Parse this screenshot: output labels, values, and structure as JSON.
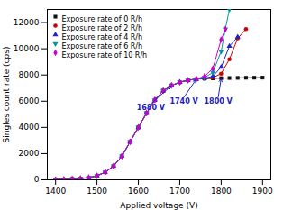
{
  "chart_data": {
    "type": "line",
    "xlabel": "Applied voltage (V)",
    "ylabel": "Singles count rate (cps)",
    "xlim": [
      1380,
      1920
    ],
    "ylim": [
      0,
      13000
    ],
    "xticks": [
      1400,
      1500,
      1600,
      1700,
      1800,
      1900
    ],
    "yticks": [
      0,
      2000,
      4000,
      6000,
      8000,
      10000,
      12000
    ],
    "grid": false,
    "legend": "upper left",
    "series": [
      {
        "name": "Exposure rate of 0 R/h",
        "color": "#111111",
        "marker": "square",
        "x": [
          1400,
          1420,
          1440,
          1460,
          1480,
          1500,
          1520,
          1540,
          1560,
          1580,
          1600,
          1620,
          1640,
          1660,
          1680,
          1700,
          1720,
          1740,
          1760,
          1780,
          1800,
          1820,
          1840,
          1860,
          1880,
          1900
        ],
        "values": [
          20,
          35,
          60,
          100,
          170,
          310,
          580,
          1050,
          1800,
          2900,
          4000,
          5100,
          6100,
          6800,
          7200,
          7450,
          7600,
          7680,
          7720,
          7740,
          7760,
          7770,
          7780,
          7790,
          7795,
          7800
        ]
      },
      {
        "name": "Exposure rate of 2 R/h",
        "color": "#cc0000",
        "marker": "circle",
        "x": [
          1400,
          1420,
          1440,
          1460,
          1480,
          1500,
          1520,
          1540,
          1560,
          1580,
          1600,
          1620,
          1640,
          1660,
          1680,
          1700,
          1720,
          1740,
          1760,
          1780,
          1800,
          1820,
          1840,
          1860
        ],
        "values": [
          20,
          35,
          60,
          100,
          170,
          310,
          580,
          1050,
          1800,
          2900,
          4000,
          5100,
          6100,
          6800,
          7200,
          7450,
          7600,
          7680,
          7730,
          7800,
          8100,
          9200,
          10800,
          11500
        ]
      },
      {
        "name": "Exposure rate of 4 R/h",
        "color": "#2222cc",
        "marker": "triangle-up",
        "x": [
          1400,
          1420,
          1440,
          1460,
          1480,
          1500,
          1520,
          1540,
          1560,
          1580,
          1600,
          1620,
          1640,
          1660,
          1680,
          1700,
          1720,
          1740,
          1760,
          1780,
          1800,
          1820,
          1840
        ],
        "values": [
          20,
          35,
          60,
          100,
          170,
          310,
          580,
          1050,
          1800,
          2900,
          4000,
          5100,
          6100,
          6800,
          7200,
          7450,
          7600,
          7680,
          7750,
          7900,
          8600,
          10200,
          10900
        ]
      },
      {
        "name": "Exposure rate of 6 R/h",
        "color": "#009999",
        "marker": "triangle-down",
        "x": [
          1400,
          1420,
          1440,
          1460,
          1480,
          1500,
          1520,
          1540,
          1560,
          1580,
          1600,
          1620,
          1640,
          1660,
          1680,
          1700,
          1720,
          1740,
          1760,
          1780,
          1800,
          1810,
          1820
        ],
        "values": [
          20,
          35,
          60,
          100,
          170,
          310,
          580,
          1050,
          1800,
          2900,
          4000,
          5100,
          6100,
          6800,
          7200,
          7450,
          7600,
          7680,
          7800,
          8200,
          9800,
          11500,
          13000
        ]
      },
      {
        "name": "Exposure rate of 10 R/h",
        "color": "#cc00cc",
        "marker": "diamond",
        "x": [
          1400,
          1420,
          1440,
          1460,
          1480,
          1500,
          1520,
          1540,
          1560,
          1580,
          1600,
          1620,
          1640,
          1660,
          1680,
          1700,
          1720,
          1740,
          1760,
          1780,
          1800,
          1810
        ],
        "values": [
          20,
          35,
          60,
          100,
          170,
          310,
          580,
          1050,
          1800,
          2900,
          4000,
          5100,
          6100,
          6800,
          7200,
          7450,
          7600,
          7700,
          7900,
          8500,
          10700,
          11500
        ]
      }
    ],
    "annotations": [
      {
        "text": "1680 V",
        "xy": [
          1680,
          7200
        ],
        "xytext": [
          1630,
          5800
        ],
        "color": "#2222bb"
      },
      {
        "text": "1740 V",
        "xy": [
          1740,
          7680
        ],
        "xytext": [
          1710,
          6300
        ],
        "color": "#2222bb"
      },
      {
        "text": "1800 V",
        "xy": [
          1800,
          7760
        ],
        "xytext": [
          1793,
          6300
        ],
        "color": "#2222bb"
      }
    ]
  }
}
